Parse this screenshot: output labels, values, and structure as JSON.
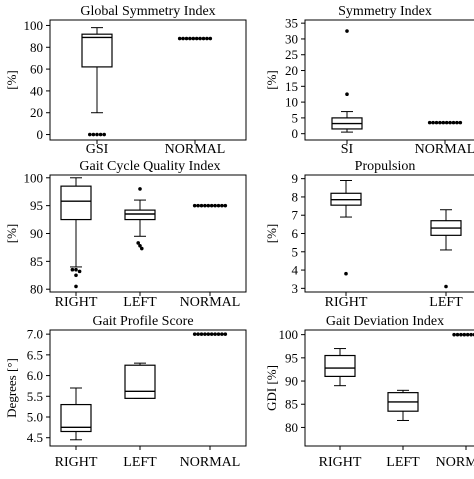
{
  "colors": {
    "axis": "#000000",
    "box": "#000000",
    "background": "#ffffff"
  },
  "chart_data": [
    {
      "type": "box",
      "title": "Global Symmetry Index",
      "ylabel": "[%]",
      "ylim": [
        -5,
        105
      ],
      "yticks": [
        0,
        20,
        40,
        60,
        80,
        100
      ],
      "categories": [
        "GSI",
        "NORMAL"
      ],
      "boxes": [
        {
          "category": "GSI",
          "min": 20,
          "q1": 62,
          "median": 89,
          "q3": 92,
          "max": 98,
          "outliers": [
            0,
            0,
            0,
            0,
            0
          ]
        },
        {
          "category": "NORMAL",
          "min": 88,
          "q1": 88,
          "median": 88,
          "q3": 88,
          "max": 88,
          "outliers": [
            88,
            88,
            88,
            88,
            88,
            88,
            88,
            88,
            88,
            88
          ]
        }
      ]
    },
    {
      "type": "box",
      "title": "Symmetry Index",
      "ylabel": "[%]",
      "ylim": [
        -2,
        36
      ],
      "yticks": [
        0,
        5,
        10,
        15,
        20,
        25,
        30,
        35
      ],
      "categories": [
        "SI",
        "NORMAL"
      ],
      "boxes": [
        {
          "category": "SI",
          "min": 0.5,
          "q1": 1.5,
          "median": 3.2,
          "q3": 5.0,
          "max": 7.0,
          "outliers": [
            12.5,
            32.5
          ]
        },
        {
          "category": "NORMAL",
          "min": 3.5,
          "q1": 3.5,
          "median": 3.5,
          "q3": 3.5,
          "max": 3.5,
          "outliers": [
            3.5,
            3.5,
            3.5,
            3.5,
            3.5,
            3.5,
            3.5,
            3.5,
            3.5,
            3.5
          ]
        }
      ]
    },
    {
      "type": "box",
      "title": "Gait Cycle Quality Index",
      "ylabel": "[%]",
      "ylim": [
        79.5,
        100.5
      ],
      "yticks": [
        80,
        85,
        90,
        95,
        100
      ],
      "categories": [
        "RIGHT",
        "LEFT",
        "NORMAL"
      ],
      "boxes": [
        {
          "category": "RIGHT",
          "min": 84,
          "q1": 92.5,
          "median": 95.8,
          "q3": 98.5,
          "max": 100,
          "outliers": [
            83.5,
            83.5,
            83.2,
            82.5,
            80.5
          ]
        },
        {
          "category": "LEFT",
          "min": 89.5,
          "q1": 92.5,
          "median": 93.5,
          "q3": 94.2,
          "max": 96,
          "outliers": [
            98,
            88.3,
            87.8,
            87.3
          ]
        },
        {
          "category": "NORMAL",
          "min": 95,
          "q1": 95,
          "median": 95,
          "q3": 95,
          "max": 95,
          "outliers": [
            95,
            95,
            95,
            95,
            95,
            95,
            95,
            95,
            95,
            95
          ]
        }
      ]
    },
    {
      "type": "box",
      "title": "Propulsion",
      "ylabel": "[%]",
      "ylim": [
        2.8,
        9.2
      ],
      "yticks": [
        3,
        4,
        5,
        6,
        7,
        8,
        9
      ],
      "categories": [
        "RIGHT",
        "LEFT"
      ],
      "boxes": [
        {
          "category": "RIGHT",
          "min": 6.9,
          "q1": 7.55,
          "median": 7.85,
          "q3": 8.2,
          "max": 8.9,
          "outliers": [
            3.8
          ]
        },
        {
          "category": "LEFT",
          "min": 5.1,
          "q1": 5.9,
          "median": 6.3,
          "q3": 6.7,
          "max": 7.3,
          "outliers": [
            3.1
          ]
        }
      ]
    },
    {
      "type": "box",
      "title": "Gait Profile Score",
      "ylabel": "Degrees [°]",
      "ylim": [
        4.3,
        7.1
      ],
      "yticks": [
        4.5,
        5.0,
        5.5,
        6.0,
        6.5,
        7.0
      ],
      "ytick_labels": [
        "4.5",
        "5.0",
        "5.5",
        "6.0",
        "6.5",
        "7.0"
      ],
      "categories": [
        "RIGHT",
        "LEFT",
        "NORMAL"
      ],
      "boxes": [
        {
          "category": "RIGHT",
          "min": 4.45,
          "q1": 4.65,
          "median": 4.75,
          "q3": 5.3,
          "max": 5.7,
          "outliers": []
        },
        {
          "category": "LEFT",
          "min": 5.45,
          "q1": 5.45,
          "median": 5.62,
          "q3": 6.25,
          "max": 6.3,
          "outliers": []
        },
        {
          "category": "NORMAL",
          "min": 7.0,
          "q1": 7.0,
          "median": 7.0,
          "q3": 7.0,
          "max": 7.0,
          "outliers": [
            7.0,
            7.0,
            7.0,
            7.0,
            7.0,
            7.0,
            7.0,
            7.0,
            7.0,
            7.0
          ]
        }
      ]
    },
    {
      "type": "box",
      "title": "Gait Deviation Index",
      "ylabel": "GDI [%]",
      "ylim": [
        76,
        101
      ],
      "yticks": [
        80,
        85,
        90,
        95,
        100
      ],
      "categories": [
        "RIGHT",
        "LEFT",
        "NORMAL"
      ],
      "boxes": [
        {
          "category": "RIGHT",
          "min": 89,
          "q1": 91,
          "median": 92.8,
          "q3": 95.5,
          "max": 97,
          "outliers": []
        },
        {
          "category": "LEFT",
          "min": 81.5,
          "q1": 83.5,
          "median": 85.5,
          "q3": 87.5,
          "max": 88,
          "outliers": []
        },
        {
          "category": "NORMAL",
          "min": 100,
          "q1": 100,
          "median": 100,
          "q3": 100,
          "max": 100,
          "outliers": [
            100,
            100,
            100,
            100,
            100,
            100,
            100,
            100
          ]
        }
      ]
    }
  ]
}
